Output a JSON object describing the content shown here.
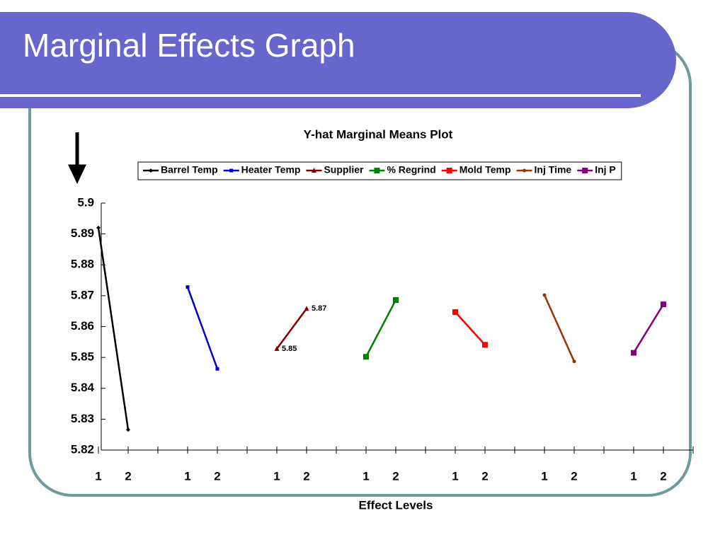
{
  "title": "Marginal Effects Graph",
  "chart_data": {
    "type": "line",
    "title": "Y-hat Marginal Means Plot",
    "x_label": "Effect Levels",
    "categories": [
      "1",
      "2",
      null,
      "1",
      "2",
      null,
      "1",
      "2",
      null,
      "1",
      "2",
      null,
      "1",
      "2",
      null,
      "1",
      "2",
      null,
      "1",
      "2",
      null
    ],
    "ylim": [
      5.82,
      5.9
    ],
    "yticks": [
      5.82,
      5.83,
      5.84,
      5.85,
      5.86,
      5.87,
      5.88,
      5.89,
      5.9
    ],
    "series": [
      {
        "name": "Barrel Temp",
        "color": "#000000",
        "marker": "diamond",
        "values": [
          5.892,
          5.8266,
          null,
          null,
          null,
          null,
          null,
          null,
          null,
          null,
          null,
          null,
          null,
          null,
          null,
          null,
          null,
          null,
          null,
          null,
          null
        ]
      },
      {
        "name": "Heater Temp",
        "color": "#0000cc",
        "marker": "square-small",
        "values": [
          null,
          null,
          null,
          5.8728,
          5.8463,
          null,
          null,
          null,
          null,
          null,
          null,
          null,
          null,
          null,
          null,
          null,
          null,
          null,
          null,
          null,
          null
        ]
      },
      {
        "name": "Supplier",
        "color": "#800000",
        "marker": "triangle",
        "values": [
          null,
          null,
          null,
          null,
          null,
          null,
          5.8528,
          5.8658,
          null,
          null,
          null,
          null,
          null,
          null,
          null,
          null,
          null,
          null,
          null,
          null,
          null
        ],
        "value_labels": [
          null,
          null,
          null,
          null,
          null,
          null,
          "5.85",
          "5.87",
          null,
          null,
          null,
          null,
          null,
          null,
          null,
          null,
          null,
          null,
          null,
          null,
          null
        ]
      },
      {
        "name": "% Regrind",
        "color": "#008000",
        "marker": "square",
        "values": [
          null,
          null,
          null,
          null,
          null,
          null,
          null,
          null,
          null,
          5.8502,
          5.8686,
          null,
          null,
          null,
          null,
          null,
          null,
          null,
          null,
          null,
          null
        ]
      },
      {
        "name": "Mold Temp",
        "color": "#ff0000",
        "marker": "square",
        "values": [
          null,
          null,
          null,
          null,
          null,
          null,
          null,
          null,
          null,
          null,
          null,
          null,
          5.8647,
          5.8541,
          null,
          null,
          null,
          null,
          null,
          null,
          null
        ]
      },
      {
        "name": "Inj Time",
        "color": "#993300",
        "marker": "circle",
        "values": [
          null,
          null,
          null,
          null,
          null,
          null,
          null,
          null,
          null,
          null,
          null,
          null,
          null,
          null,
          null,
          5.8702,
          5.8487,
          null,
          null,
          null,
          null
        ]
      },
      {
        "name": "Inj P",
        "color": "#800080",
        "marker": "square",
        "values": [
          null,
          null,
          null,
          null,
          null,
          null,
          null,
          null,
          null,
          null,
          null,
          null,
          null,
          null,
          null,
          null,
          null,
          null,
          5.8515,
          5.8672,
          null
        ]
      }
    ]
  }
}
